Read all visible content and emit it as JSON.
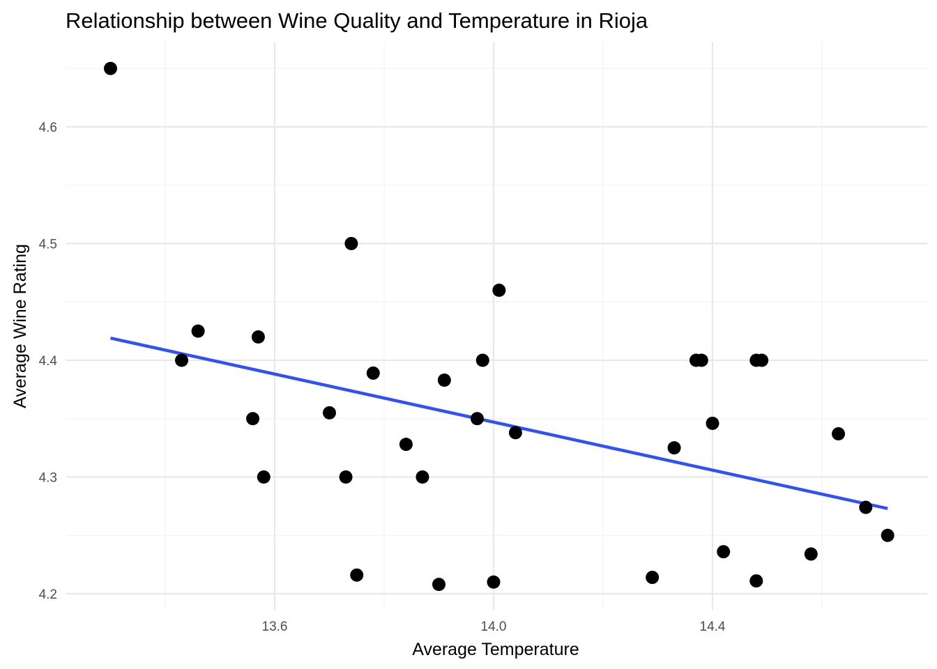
{
  "chart_data": {
    "type": "scatter",
    "title": "Relationship between Wine Quality and Temperature in Rioja",
    "xlabel": "Average Temperature",
    "ylabel": "Average Wine Rating",
    "xlim": [
      13.25,
      14.78
    ],
    "ylim": [
      4.195,
      4.665
    ],
    "x_ticks": [
      13.6,
      14.0,
      14.4
    ],
    "x_tick_labels": [
      "13.6",
      "14.0",
      "14.4"
    ],
    "x_minor_ticks": [
      13.4,
      13.8,
      14.2,
      14.6
    ],
    "y_ticks": [
      4.2,
      4.3,
      4.4,
      4.5,
      4.6
    ],
    "y_tick_labels": [
      "4.2",
      "4.3",
      "4.4",
      "4.5",
      "4.6"
    ],
    "y_minor_ticks": [
      4.25,
      4.35,
      4.45,
      4.55,
      4.65
    ],
    "grid": true,
    "legend": "none",
    "point_color": "#000000",
    "trend_line": {
      "method": "linear",
      "x": [
        13.3,
        14.72
      ],
      "y": [
        4.419,
        4.273
      ],
      "color": "#3050f8"
    },
    "points": [
      {
        "x": 13.3,
        "y": 4.65
      },
      {
        "x": 13.43,
        "y": 4.4
      },
      {
        "x": 13.46,
        "y": 4.425
      },
      {
        "x": 13.56,
        "y": 4.35
      },
      {
        "x": 13.57,
        "y": 4.42
      },
      {
        "x": 13.58,
        "y": 4.3
      },
      {
        "x": 13.7,
        "y": 4.355
      },
      {
        "x": 13.73,
        "y": 4.3
      },
      {
        "x": 13.74,
        "y": 4.5
      },
      {
        "x": 13.75,
        "y": 4.216
      },
      {
        "x": 13.78,
        "y": 4.389
      },
      {
        "x": 13.84,
        "y": 4.328
      },
      {
        "x": 13.87,
        "y": 4.3
      },
      {
        "x": 13.9,
        "y": 4.208
      },
      {
        "x": 13.91,
        "y": 4.383
      },
      {
        "x": 13.97,
        "y": 4.35
      },
      {
        "x": 13.98,
        "y": 4.4
      },
      {
        "x": 14.0,
        "y": 4.21
      },
      {
        "x": 14.01,
        "y": 4.46
      },
      {
        "x": 14.04,
        "y": 4.338
      },
      {
        "x": 14.29,
        "y": 4.214
      },
      {
        "x": 14.33,
        "y": 4.325
      },
      {
        "x": 14.37,
        "y": 4.4
      },
      {
        "x": 14.38,
        "y": 4.4
      },
      {
        "x": 14.4,
        "y": 4.346
      },
      {
        "x": 14.42,
        "y": 4.236
      },
      {
        "x": 14.48,
        "y": 4.4
      },
      {
        "x": 14.48,
        "y": 4.211
      },
      {
        "x": 14.49,
        "y": 4.4
      },
      {
        "x": 14.58,
        "y": 4.234
      },
      {
        "x": 14.63,
        "y": 4.337
      },
      {
        "x": 14.68,
        "y": 4.274
      },
      {
        "x": 14.72,
        "y": 4.25
      }
    ]
  }
}
